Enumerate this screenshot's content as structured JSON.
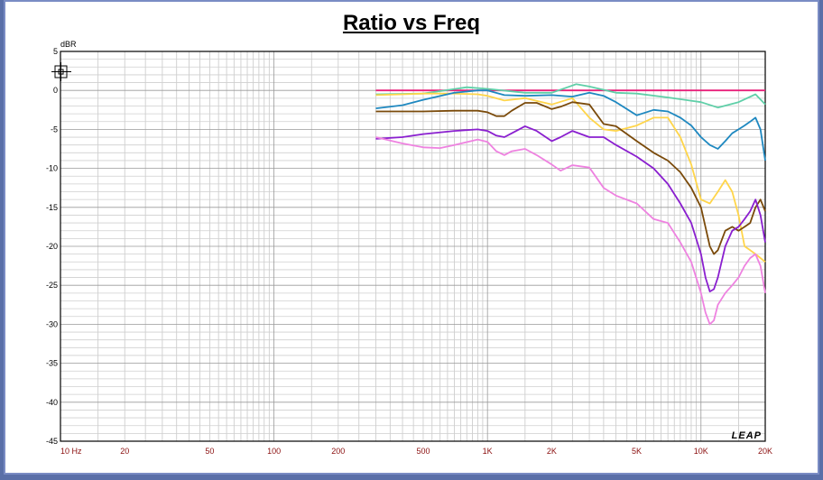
{
  "chart_data": {
    "type": "line",
    "title": "Ratio vs Freq",
    "ylabel": "dBR",
    "xlabel": "",
    "x_scale": "log",
    "xlim": [
      10,
      20000
    ],
    "ylim": [
      -45,
      5
    ],
    "grid": true,
    "x_ticks": [
      {
        "value": 10,
        "label": "10  Hz"
      },
      {
        "value": 20,
        "label": "20"
      },
      {
        "value": 50,
        "label": "50"
      },
      {
        "value": 100,
        "label": "100"
      },
      {
        "value": 200,
        "label": "200"
      },
      {
        "value": 500,
        "label": "500"
      },
      {
        "value": 1000,
        "label": "1K"
      },
      {
        "value": 2000,
        "label": "2K"
      },
      {
        "value": 5000,
        "label": "5K"
      },
      {
        "value": 10000,
        "label": "10K"
      },
      {
        "value": 20000,
        "label": "20K"
      }
    ],
    "y_ticks": [
      5,
      0,
      -5,
      -10,
      -15,
      -20,
      -25,
      -30,
      -35,
      -40,
      -45
    ],
    "watermark": "LEAP",
    "series": [
      {
        "color": "#e8207a",
        "x": [
          300,
          500,
          1000,
          2000,
          5000,
          10000,
          20000
        ],
        "y": [
          0,
          0,
          0,
          0,
          0,
          0,
          0
        ]
      },
      {
        "color": "#5fcfa8",
        "x": [
          300,
          500,
          800,
          1000,
          1500,
          2000,
          2600,
          3000,
          4000,
          5000,
          7000,
          10000,
          12000,
          15000,
          18000,
          20000
        ],
        "y": [
          -0.5,
          -0.4,
          0.4,
          0.2,
          -0.3,
          -0.3,
          0.8,
          0.5,
          -0.3,
          -0.4,
          -0.9,
          -1.5,
          -2.2,
          -1.5,
          -0.5,
          -1.8
        ]
      },
      {
        "color": "#ffd54a",
        "x": [
          300,
          400,
          500,
          700,
          900,
          1000,
          1200,
          1500,
          2000,
          2500,
          3000,
          3500,
          4000,
          5000,
          6000,
          7000,
          8000,
          9000,
          10000,
          11000,
          12000,
          13000,
          14000,
          15000,
          16000,
          17000,
          18000,
          19000,
          20000
        ],
        "y": [
          -0.6,
          -0.5,
          -0.4,
          -0.4,
          -0.5,
          -0.7,
          -1.3,
          -1.0,
          -1.8,
          -1.0,
          -3.5,
          -5.0,
          -5.2,
          -4.5,
          -3.5,
          -3.5,
          -6.0,
          -9.5,
          -14.0,
          -14.5,
          -13.0,
          -11.5,
          -13.0,
          -16.0,
          -20.0,
          -20.5,
          -21.0,
          -21.5,
          -22.0
        ]
      },
      {
        "color": "#1e88c0",
        "x": [
          300,
          400,
          500,
          700,
          900,
          1000,
          1200,
          1500,
          2000,
          2500,
          3000,
          3500,
          4000,
          5000,
          6000,
          7000,
          8000,
          9000,
          10000,
          11000,
          12000,
          13000,
          14000,
          15000,
          16000,
          17000,
          18000,
          19000,
          20000
        ],
        "y": [
          -2.3,
          -1.9,
          -1.2,
          -0.3,
          0.0,
          0.0,
          -0.6,
          -0.7,
          -0.6,
          -0.8,
          -0.3,
          -0.7,
          -1.5,
          -3.2,
          -2.5,
          -2.7,
          -3.5,
          -4.5,
          -6.0,
          -7.0,
          -7.5,
          -6.5,
          -5.5,
          -5.0,
          -4.5,
          -4.0,
          -3.5,
          -5.0,
          -9.0
        ]
      },
      {
        "color": "#7a4a0a",
        "x": [
          300,
          500,
          700,
          900,
          1000,
          1100,
          1200,
          1300,
          1500,
          1700,
          2000,
          2200,
          2500,
          3000,
          3500,
          4000,
          5000,
          6000,
          7000,
          8000,
          9000,
          10000,
          11000,
          11500,
          12000,
          13000,
          14000,
          15000,
          16000,
          17000,
          18000,
          19000,
          20000
        ],
        "y": [
          -2.7,
          -2.7,
          -2.6,
          -2.6,
          -2.8,
          -3.3,
          -3.3,
          -2.6,
          -1.6,
          -1.6,
          -2.4,
          -2.1,
          -1.5,
          -1.8,
          -4.3,
          -4.6,
          -6.5,
          -8.0,
          -9.0,
          -10.5,
          -12.5,
          -15.0,
          -20.0,
          -21.0,
          -20.5,
          -18.0,
          -17.5,
          -18.0,
          -17.5,
          -17.0,
          -15.0,
          -14.0,
          -15.5
        ]
      },
      {
        "color": "#8a1fcf",
        "x": [
          300,
          400,
          500,
          700,
          900,
          1000,
          1100,
          1200,
          1300,
          1500,
          1700,
          2000,
          2200,
          2500,
          3000,
          3500,
          4000,
          5000,
          6000,
          7000,
          8000,
          9000,
          10000,
          10500,
          11000,
          11500,
          12000,
          13000,
          14000,
          15000,
          16000,
          17000,
          18000,
          19000,
          20000
        ],
        "y": [
          -6.2,
          -6.0,
          -5.6,
          -5.2,
          -5.0,
          -5.2,
          -5.8,
          -6.0,
          -5.5,
          -4.6,
          -5.2,
          -6.5,
          -6.0,
          -5.2,
          -6.0,
          -6.0,
          -7.0,
          -8.5,
          -10.0,
          -12.0,
          -14.5,
          -17.0,
          -21.0,
          -24.0,
          -25.8,
          -25.5,
          -24.0,
          -20.0,
          -18.0,
          -17.5,
          -16.5,
          -15.5,
          -14.0,
          -16.0,
          -19.5
        ]
      },
      {
        "color": "#ee82e0",
        "x": [
          300,
          400,
          500,
          600,
          700,
          900,
          1000,
          1100,
          1200,
          1300,
          1500,
          1700,
          2000,
          2200,
          2500,
          3000,
          3500,
          4000,
          5000,
          6000,
          7000,
          8000,
          9000,
          10000,
          10500,
          11000,
          11500,
          12000,
          13000,
          14000,
          15000,
          16000,
          17000,
          18000,
          19000,
          20000
        ],
        "y": [
          -6.0,
          -6.8,
          -7.3,
          -7.4,
          -7.0,
          -6.3,
          -6.6,
          -7.8,
          -8.3,
          -7.8,
          -7.5,
          -8.3,
          -9.5,
          -10.3,
          -9.6,
          -9.9,
          -12.5,
          -13.5,
          -14.5,
          -16.5,
          -17.0,
          -19.5,
          -22.0,
          -26.0,
          -28.5,
          -30.0,
          -29.5,
          -27.5,
          -26.0,
          -25.0,
          -24.0,
          -22.5,
          -21.5,
          -21.0,
          -22.5,
          -26.0
        ]
      }
    ]
  }
}
